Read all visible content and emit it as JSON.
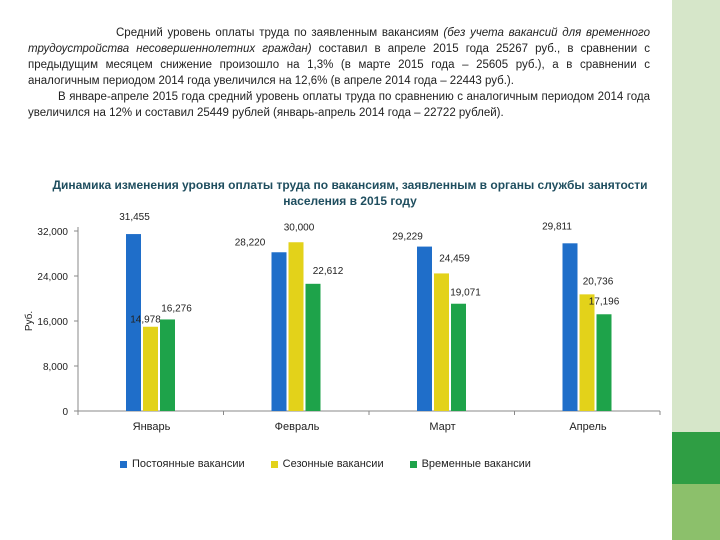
{
  "intro": {
    "p1_start": "Средний уровень оплаты труда по заявленным вакансиям ",
    "p1_italic": "(без учета вакансий для временного трудоустройства несовершеннолетних граждан)",
    "p1_rest": " составил в апреле 2015 года 25267 руб., в сравнении с предыдущим месяцем снижение произошло на 1,3% (в марте 2015 года – 25605 руб.), а в сравнении с аналогичным периодом 2014 года увеличился на 12,6% (в апреле 2014 года – 22443 руб.).",
    "p2": "В январе-апреле 2015 года средний уровень оплаты труда по сравнению с аналогичным периодом 2014 года увеличился на 12% и составил 25449 рублей (январь-апрель 2014 года – 22722 рублей)."
  },
  "colors": {
    "permanent": "#1f6ec9",
    "seasonal": "#e3d21a",
    "temporary": "#1ea34a",
    "strip_light": "#d6e6c9",
    "strip_mid": "#2f9e44",
    "strip_dark": "#8cc06b"
  },
  "chart_data": {
    "type": "bar",
    "title": "Динамика изменения уровня оплаты труда по вакансиям, заявленным в органы службы занятости населения в 2015 году",
    "ylabel": "Руб.",
    "xlabel": "",
    "ylim": [
      0,
      32000
    ],
    "yticks": [
      0,
      8000,
      16000,
      24000,
      32000
    ],
    "ytick_labels": [
      "0",
      "8,000",
      "16,000",
      "24,000",
      "32,000"
    ],
    "grid": false,
    "legend_position": "bottom",
    "categories": [
      "Январь",
      "Февраль",
      "Март",
      "Апрель"
    ],
    "series": [
      {
        "name": "Постоянные вакансии",
        "values": [
          31455,
          28220,
          29229,
          29811
        ],
        "labels": [
          "31,455",
          "28,220",
          "29,229",
          "29,811"
        ]
      },
      {
        "name": "Сезонные вакансии",
        "values": [
          14978,
          30000,
          24459,
          20736
        ],
        "labels": [
          "14,978",
          "30,000",
          "24,459",
          "20,736"
        ]
      },
      {
        "name": "Временные вакансии",
        "values": [
          16276,
          22612,
          19071,
          17196
        ],
        "labels": [
          "16,276",
          "22,612",
          "19,071",
          "17,196"
        ]
      }
    ]
  }
}
